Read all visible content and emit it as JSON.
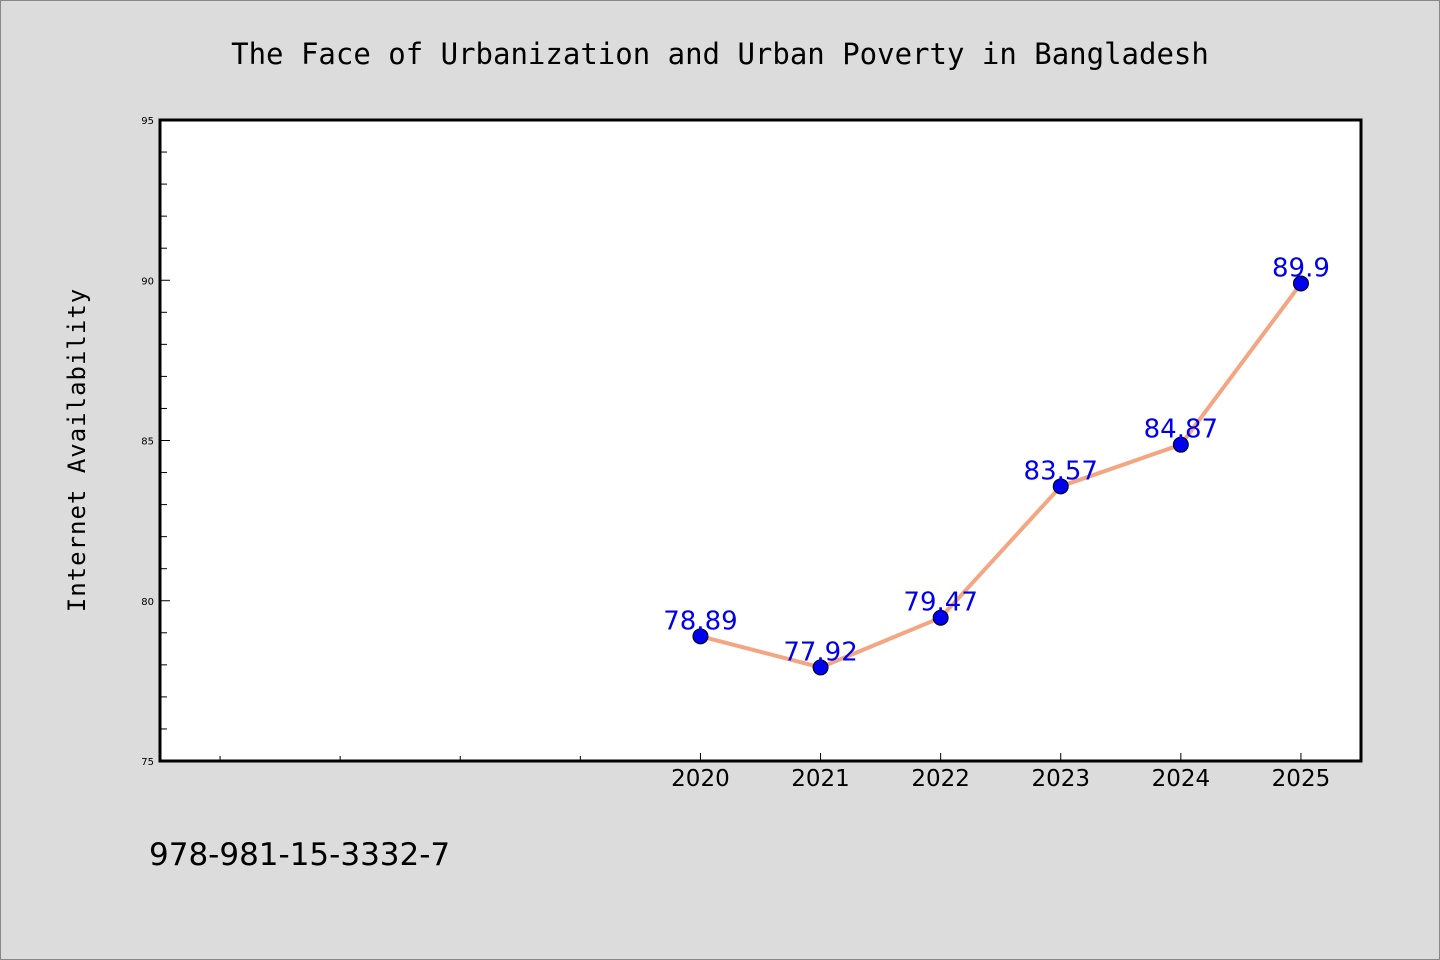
{
  "chart_data": {
    "type": "line",
    "title": "The Face of Urbanization and Urban Poverty in Bangladesh",
    "xlabel": "",
    "ylabel": "Internet Availability",
    "categories": [
      "2020",
      "2021",
      "2022",
      "2023",
      "2024",
      "2025"
    ],
    "series": [
      {
        "values": [
          78.89,
          77.92,
          79.47,
          83.57,
          84.87,
          89.9
        ],
        "labels": [
          "78.89",
          "77.92",
          "79.47",
          "83.57",
          "84.87",
          "89.9"
        ],
        "line_color": "#f4a582",
        "marker_color": "#0000ee"
      }
    ],
    "xlim": [
      2015.5,
      2025.5
    ],
    "ylim": [
      75,
      95
    ],
    "yticks": [
      "75",
      "80",
      "85",
      "90",
      "95"
    ],
    "grid": false,
    "legend": "none"
  },
  "footnote": "978-981-15-3332-7",
  "colors": {
    "page_background": "#dcdcdc",
    "plot_background": "#ffffff",
    "axes": "#000000",
    "line": "#f4a582",
    "marker": "#0000ee",
    "data_label": "#0000ee"
  }
}
